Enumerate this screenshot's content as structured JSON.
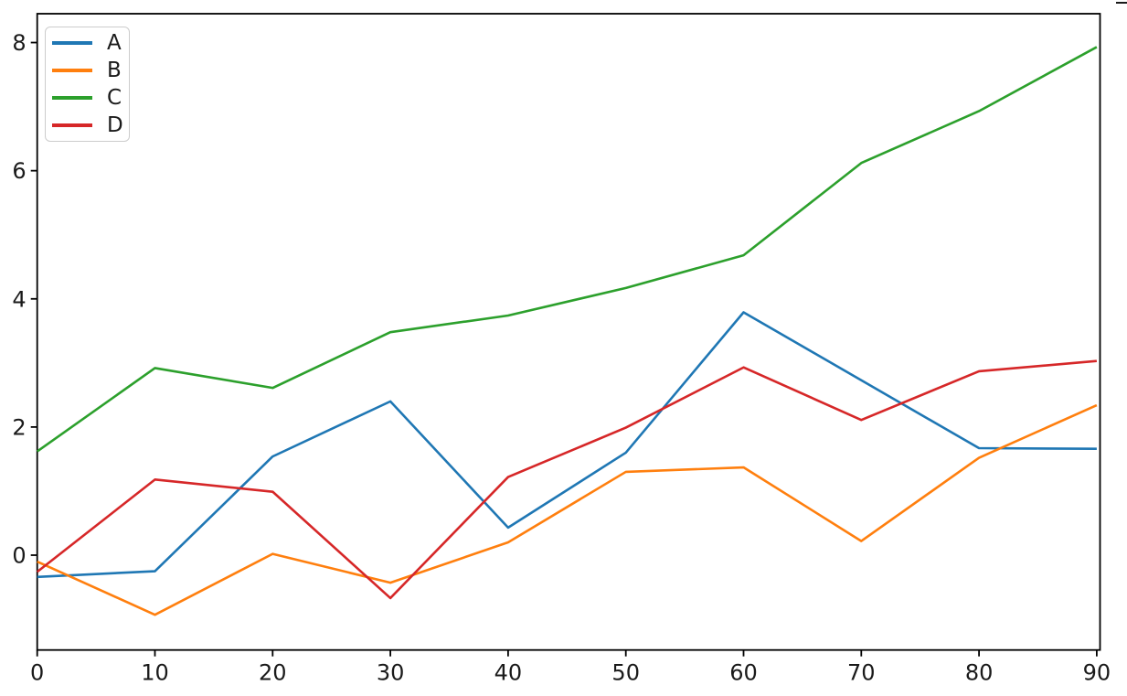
{
  "chart_data": {
    "type": "line",
    "title": "",
    "xlabel": "",
    "ylabel": "",
    "grid": false,
    "legend_position": "upper left",
    "x": [
      0,
      10,
      20,
      30,
      40,
      50,
      60,
      70,
      80,
      90
    ],
    "xticks": [
      0,
      10,
      20,
      30,
      40,
      50,
      60,
      70,
      80,
      90
    ],
    "yticks": [
      0,
      2,
      4,
      6,
      8
    ],
    "xlim": [
      0,
      90.28
    ],
    "ylim": [
      -1.48,
      8.45
    ],
    "series": [
      {
        "name": "A",
        "color": "#1f77b4",
        "values": [
          -0.34,
          -0.25,
          1.54,
          2.4,
          0.43,
          1.6,
          3.79,
          2.73,
          1.67,
          1.66
        ]
      },
      {
        "name": "B",
        "color": "#ff7f0e",
        "values": [
          -0.1,
          -0.93,
          0.02,
          -0.43,
          0.2,
          1.3,
          1.37,
          0.22,
          1.52,
          2.34
        ]
      },
      {
        "name": "C",
        "color": "#2ca02c",
        "values": [
          1.62,
          2.92,
          2.61,
          3.48,
          3.74,
          4.17,
          4.68,
          6.12,
          6.93,
          7.93
        ]
      },
      {
        "name": "D",
        "color": "#d62728",
        "values": [
          -0.26,
          1.18,
          0.99,
          -0.67,
          1.22,
          1.99,
          2.93,
          2.11,
          2.87,
          3.03
        ]
      }
    ]
  }
}
